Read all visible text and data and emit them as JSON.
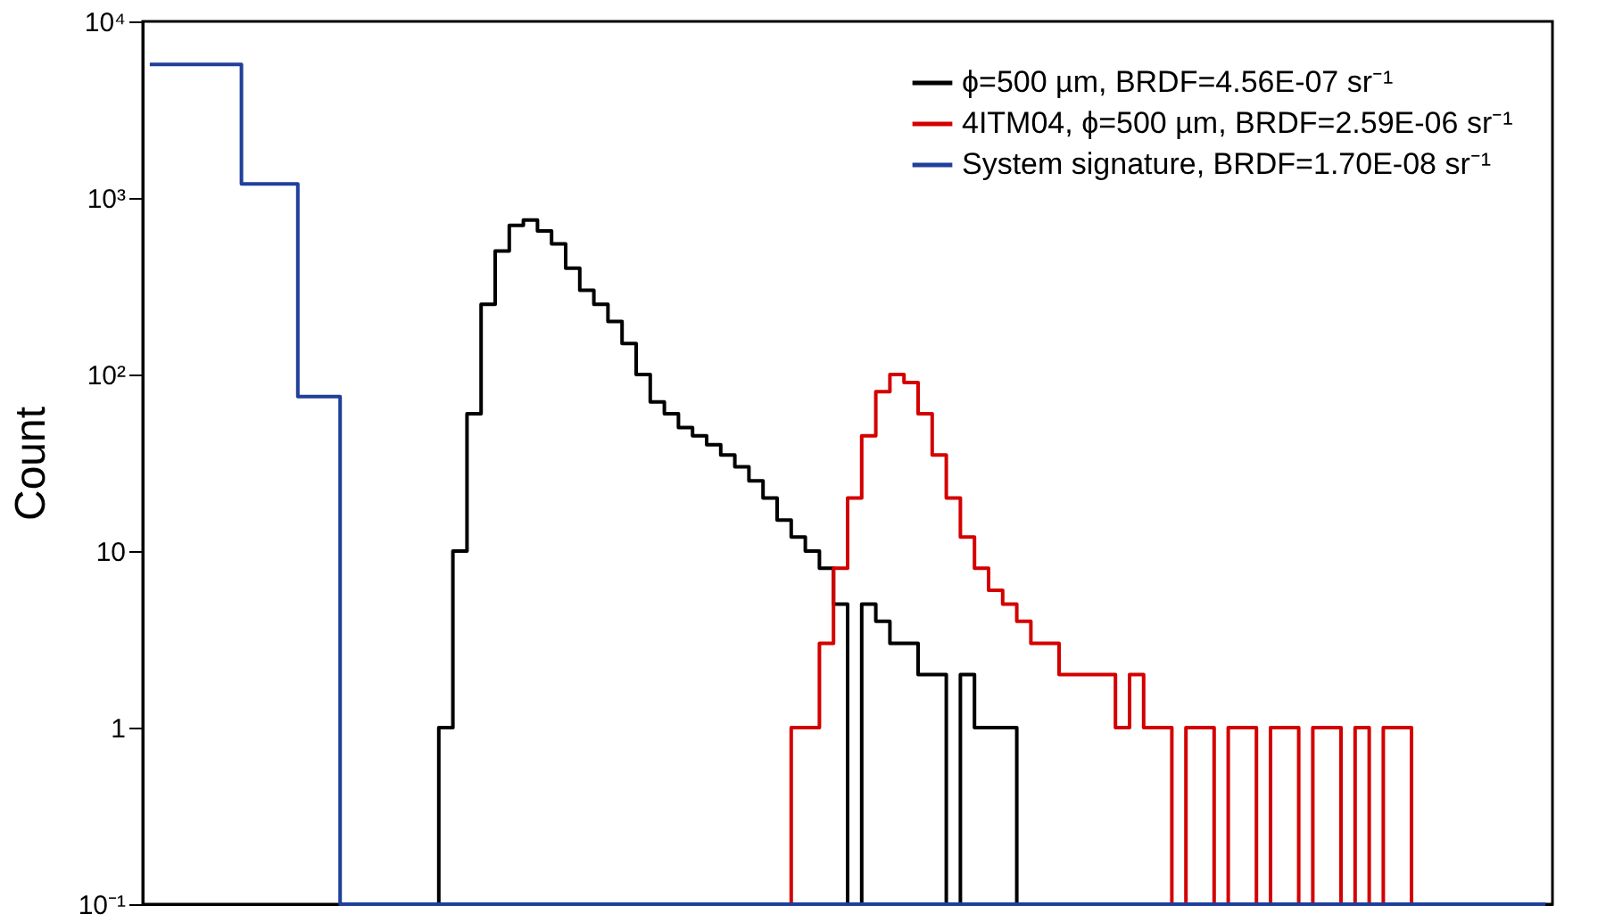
{
  "chart_data": {
    "type": "step",
    "ylabel": "Count",
    "log": true,
    "ylim": [
      0.1,
      10000
    ],
    "yticks": [
      {
        "value": 0.1,
        "label": "10⁻¹"
      },
      {
        "value": 1,
        "label": "1"
      },
      {
        "value": 10,
        "label": "10"
      },
      {
        "value": 100,
        "label": "10²"
      },
      {
        "value": 1000,
        "label": "10³"
      },
      {
        "value": 10000,
        "label": "10⁴"
      }
    ],
    "tick_labels": "y",
    "grid": false,
    "legend": "top right",
    "categories": [
      null,
      null,
      null,
      null,
      null,
      null,
      null,
      null,
      null,
      null,
      null,
      null,
      null,
      null,
      null,
      null,
      null,
      null,
      null,
      null,
      null,
      null,
      null,
      null,
      null,
      null,
      null,
      null,
      null,
      null,
      null,
      null,
      null,
      null,
      null,
      null,
      null,
      null,
      null,
      null,
      null,
      null,
      null,
      null,
      null,
      null,
      null,
      null,
      null,
      null,
      null,
      null,
      null,
      null,
      null,
      null,
      null,
      null,
      null,
      null,
      null,
      null,
      null,
      null,
      null,
      null,
      null,
      null,
      null,
      null,
      null,
      null,
      null,
      null,
      null,
      null,
      null,
      null,
      null,
      null,
      null,
      null,
      null,
      null,
      null,
      null,
      null,
      null,
      null,
      null,
      null,
      null,
      null,
      null,
      null,
      null,
      null,
      null,
      null,
      null
    ],
    "series": [
      {
        "name": "ϕ=500 µm, BRDF=4.56E-07 sr⁻¹",
        "color": "#000000",
        "values": [
          null,
          null,
          null,
          null,
          null,
          null,
          null,
          null,
          null,
          null,
          null,
          null,
          null,
          null,
          null,
          null,
          null,
          null,
          null,
          null,
          0.1,
          1,
          10,
          60,
          250,
          500,
          700,
          750,
          650,
          550,
          400,
          300,
          250,
          200,
          150,
          100,
          70,
          60,
          50,
          45,
          40,
          35,
          30,
          25,
          20,
          15,
          12,
          10,
          8,
          5,
          0.1,
          5,
          4,
          3,
          3,
          2,
          2,
          0.1,
          2,
          1,
          1,
          1,
          0.1,
          null,
          null,
          null,
          null,
          null,
          null,
          null,
          null,
          null,
          null,
          null,
          null,
          null,
          null,
          null,
          null,
          null,
          null,
          null,
          null,
          null,
          null,
          null,
          null,
          null,
          null,
          null,
          null,
          null,
          null,
          null,
          null,
          null,
          null,
          null,
          null,
          null
        ]
      },
      {
        "name": "4ITM04, ϕ=500 µm, BRDF=2.59E-06 sr⁻¹",
        "color": "#d40000",
        "values": [
          null,
          null,
          null,
          null,
          null,
          null,
          null,
          null,
          null,
          null,
          null,
          null,
          null,
          null,
          null,
          null,
          null,
          null,
          null,
          null,
          null,
          null,
          null,
          null,
          null,
          null,
          null,
          null,
          null,
          null,
          null,
          null,
          null,
          null,
          null,
          null,
          null,
          null,
          null,
          null,
          null,
          null,
          null,
          null,
          null,
          0.1,
          1,
          1,
          3,
          8,
          20,
          45,
          80,
          100,
          90,
          60,
          35,
          20,
          12,
          8,
          6,
          5,
          4,
          3,
          3,
          2,
          2,
          2,
          2,
          1,
          2,
          1,
          1,
          0.1,
          1,
          1,
          0.1,
          1,
          1,
          0.1,
          1,
          1,
          0.1,
          1,
          1,
          0.1,
          1,
          0.1,
          1,
          1,
          0.1,
          null,
          null,
          null,
          null,
          null,
          null,
          null,
          null,
          null
        ]
      },
      {
        "name": "System signature, BRDF=1.70E-08 sr⁻¹",
        "color": "#1f3f9a",
        "values": [
          5700,
          5700,
          5700,
          5700,
          5700,
          5700,
          5700,
          1200,
          1200,
          1200,
          1200,
          75,
          75,
          75,
          0.1,
          0.1,
          0.1,
          0.1,
          0.1,
          0.1,
          0.1,
          0.1,
          0.1,
          0.1,
          0.1,
          0.1,
          0.1,
          0.1,
          0.1,
          0.1,
          0.1,
          0.1,
          0.1,
          0.1,
          0.1,
          0.1,
          0.1,
          0.1,
          0.1,
          0.1,
          0.1,
          0.1,
          0.1,
          0.1,
          0.1,
          0.1,
          0.1,
          0.1,
          0.1,
          0.1,
          0.1,
          0.1,
          0.1,
          0.1,
          0.1,
          0.1,
          0.1,
          0.1,
          0.1,
          0.1,
          0.1,
          0.1,
          0.1,
          0.1,
          0.1,
          0.1,
          0.1,
          0.1,
          0.1,
          0.1,
          0.1,
          0.1,
          0.1,
          0.1,
          0.1,
          0.1,
          0.1,
          0.1,
          0.1,
          0.1,
          0.1,
          0.1,
          0.1,
          0.1,
          0.1,
          0.1,
          0.1,
          0.1,
          0.1,
          0.1,
          0.1,
          0.1,
          0.1,
          0.1,
          0.1,
          0.1,
          0.1,
          0.1,
          0.1,
          0.1
        ]
      }
    ]
  }
}
